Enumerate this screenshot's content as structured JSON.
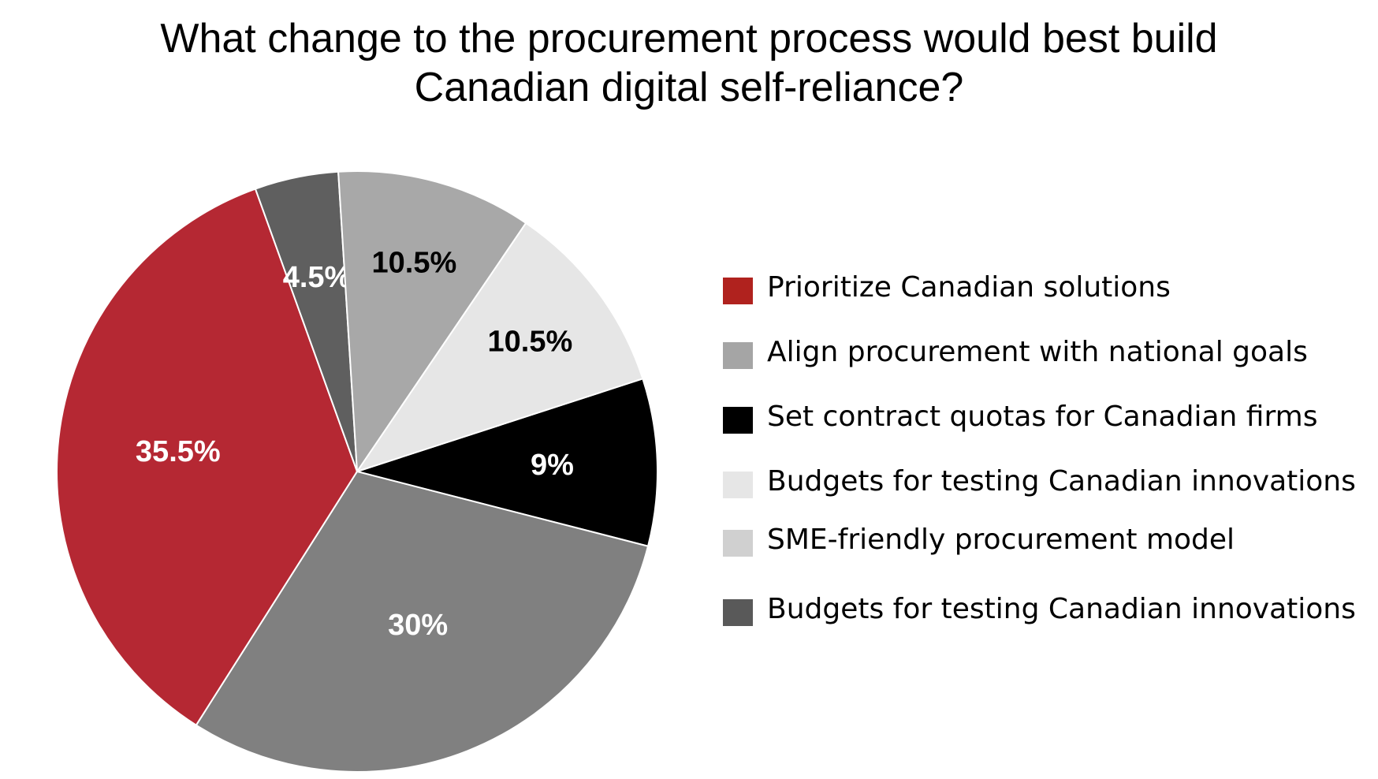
{
  "chart_data": {
    "type": "pie",
    "title_lines": [
      "What change to the procurement process would best build",
      "Canadian digital self-reliance?"
    ],
    "slices": [
      {
        "label": "Set contract quotas for Canadian firms",
        "value": 9,
        "display": "9%",
        "color": "#000000",
        "label_color": "#ffffff"
      },
      {
        "label": "Align procurement with national goals",
        "value": 30,
        "display": "30%",
        "color": "#808080",
        "label_color": "#ffffff"
      },
      {
        "label": "Prioritize Canadian solutions",
        "value": 35.5,
        "display": "35.5%",
        "color": "#b52833",
        "label_color": "#ffffff"
      },
      {
        "label": "Budgets for testing Canadian innovations",
        "value": 4.5,
        "display": "4.5%",
        "color": "#5f5f5f",
        "label_color": "#ffffff"
      },
      {
        "label": "SME-friendly procurement model",
        "value": 10.5,
        "display": "10.5%",
        "color": "#a8a8a8",
        "label_color": "#000000"
      },
      {
        "label": "Budgets for testing Canadian innovations",
        "value": 10.5,
        "display": "10.5%",
        "color": "#e6e6e6",
        "label_color": "#000000"
      }
    ],
    "start_angle_deg": 72,
    "direction": "clockwise",
    "legend_position": "right",
    "legend": [
      {
        "label": "Prioritize Canadian solutions",
        "color": "#b0221e"
      },
      {
        "label": "Align procurement with national goals",
        "color": "#a5a5a5"
      },
      {
        "label": "Set contract quotas for Canadian firms",
        "color": "#000000"
      },
      {
        "label": "Budgets for testing Canadian innovations",
        "color": "#e6e6e6"
      },
      {
        "label": "SME-friendly procurement model",
        "color": "#d0d0d0"
      },
      {
        "label": "Budgets for testing Canadian innovations",
        "color": "#595959"
      }
    ]
  }
}
